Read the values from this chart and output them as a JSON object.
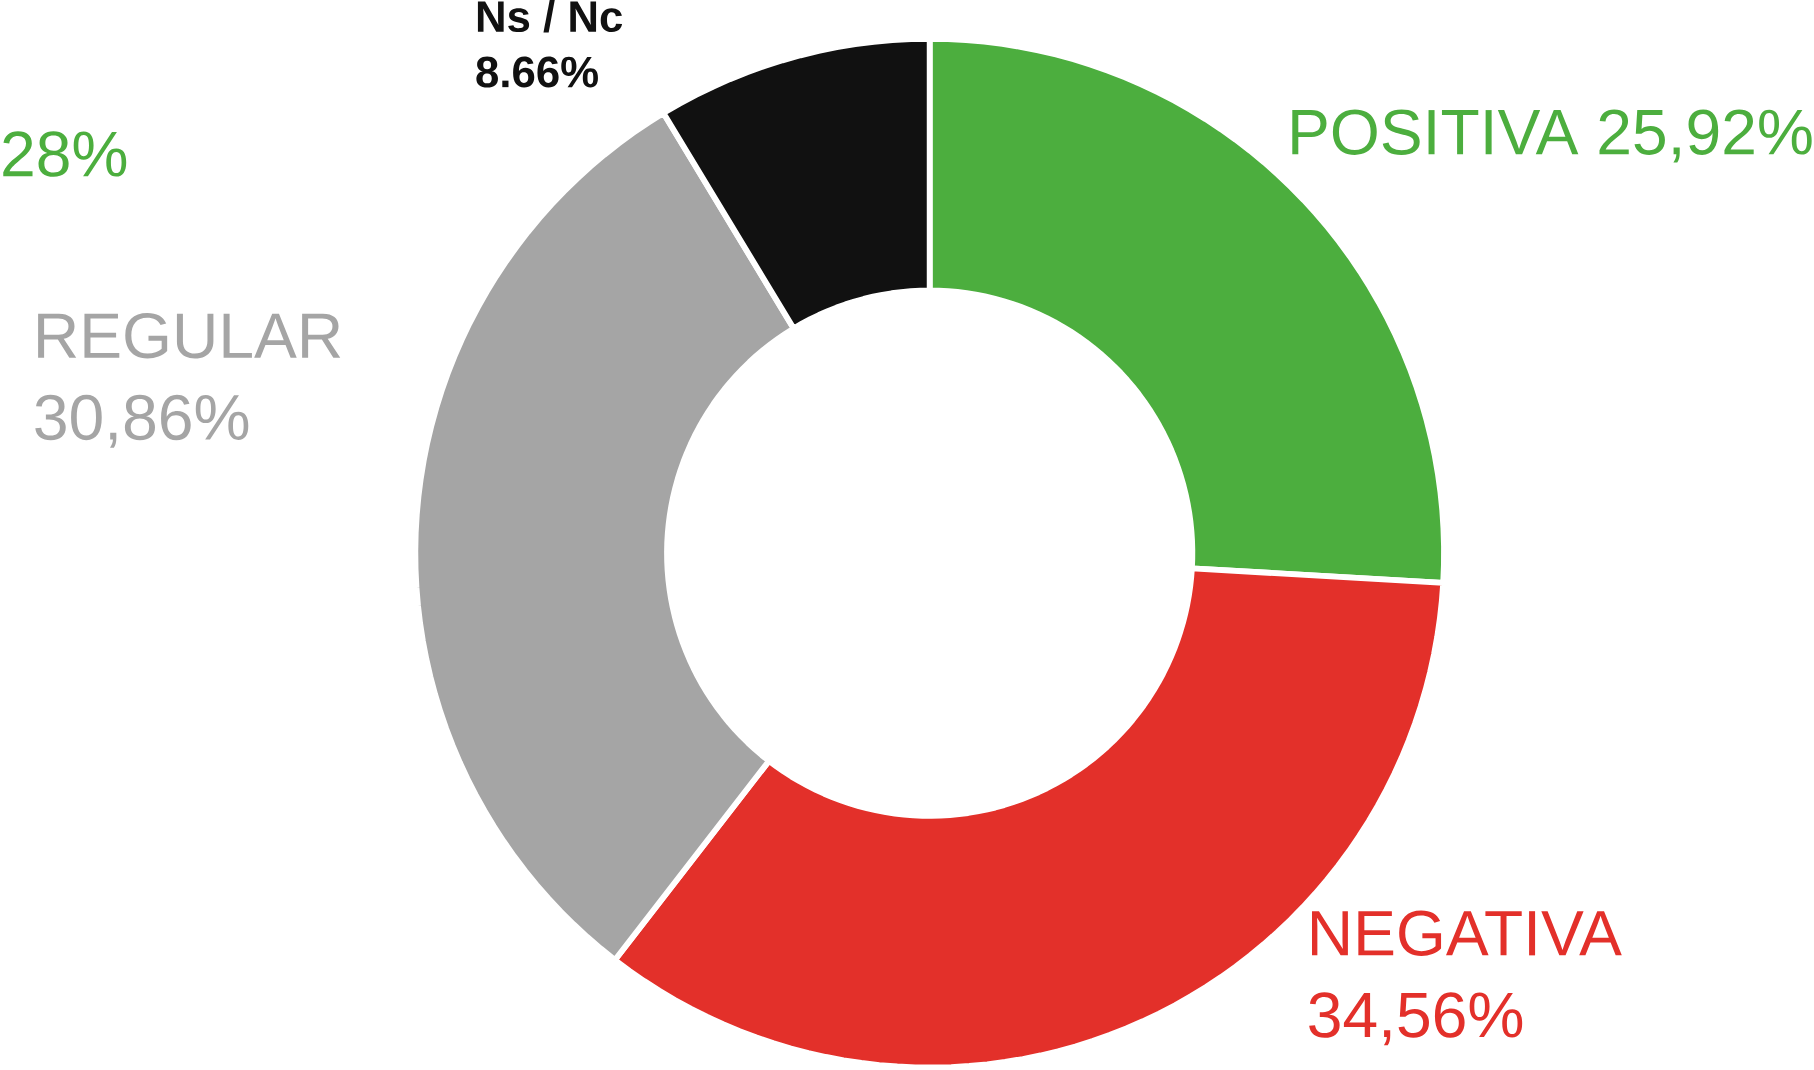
{
  "chart_data": {
    "type": "donut",
    "categories": [
      "POSITIVA",
      "NEGATIVA",
      "REGULAR",
      "Ns / Nc"
    ],
    "values": [
      25.92,
      34.56,
      30.86,
      8.66
    ],
    "value_labels": [
      "25,92%",
      "34,56%",
      "30,86%",
      "8.66%"
    ],
    "colors": [
      "#4cae3e",
      "#e3302a",
      "#a5a5a5",
      "#111111"
    ],
    "annotations": [
      "28%"
    ]
  }
}
